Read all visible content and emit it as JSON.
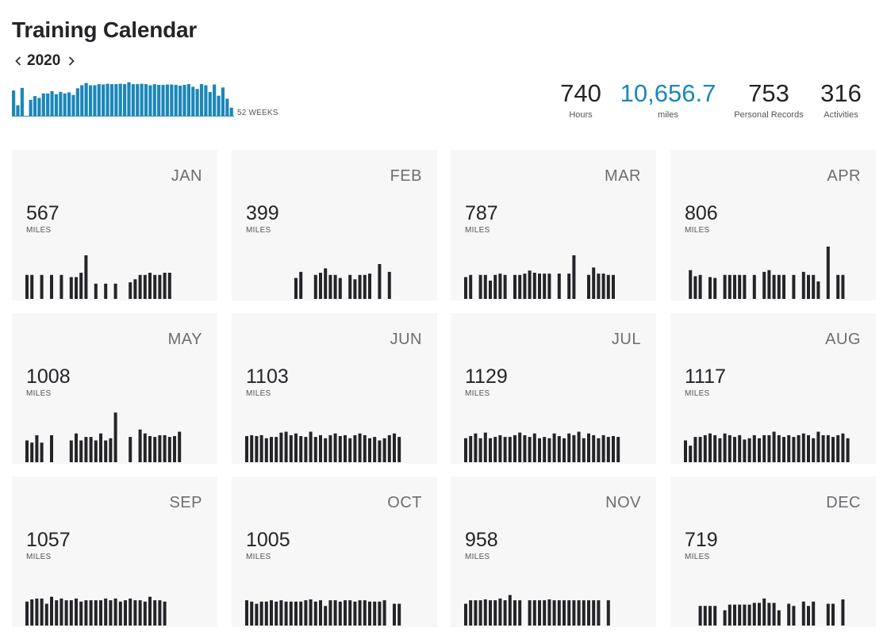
{
  "header": {
    "title": "Training Calendar",
    "year": "2020",
    "prev_icon": "chevron-left-icon",
    "next_icon": "chevron-right-icon",
    "weeks_caption": "52 WEEKS"
  },
  "weekly_chart": {
    "color": "#1b87b9",
    "values": [
      0.7,
      0.3,
      0.77,
      0.0,
      0.45,
      0.55,
      0.5,
      0.62,
      0.62,
      0.68,
      0.6,
      0.66,
      0.62,
      0.65,
      0.58,
      0.76,
      0.84,
      0.9,
      0.84,
      0.84,
      0.87,
      0.86,
      0.88,
      0.87,
      0.87,
      0.88,
      0.87,
      0.92,
      0.87,
      0.87,
      0.88,
      0.87,
      0.84,
      0.87,
      0.85,
      0.85,
      0.86,
      0.86,
      0.85,
      0.83,
      0.85,
      0.87,
      0.8,
      0.74,
      0.87,
      0.84,
      0.66,
      0.86,
      0.56,
      0.78,
      0.48,
      0.24
    ]
  },
  "stats": [
    {
      "value": "740",
      "label": "Hours",
      "accent": false
    },
    {
      "value": "10,656.7",
      "label": "miles",
      "accent": true
    },
    {
      "value": "753",
      "label": "Personal Records",
      "accent": false
    },
    {
      "value": "316",
      "label": "Activities",
      "accent": false
    }
  ],
  "months": [
    {
      "name": "JAN",
      "miles": "567",
      "unit": "MILES",
      "bars": [
        0.55,
        0.55,
        0,
        0.55,
        0,
        0.55,
        0,
        0.55,
        0,
        0.5,
        0.5,
        0.6,
        1.0,
        0,
        0.35,
        0,
        0.35,
        0,
        0.35,
        0,
        0,
        0.38,
        0.45,
        0.55,
        0.55,
        0.6,
        0.55,
        0.55,
        0.6,
        0.6,
        0
      ]
    },
    {
      "name": "FEB",
      "miles": "399",
      "unit": "MILES",
      "bars": [
        0,
        0,
        0,
        0,
        0,
        0,
        0,
        0,
        0,
        0,
        0.48,
        0.62,
        0,
        0,
        0.55,
        0.6,
        0.7,
        0.55,
        0.55,
        0.48,
        0,
        0.55,
        0.45,
        0.55,
        0.55,
        0.58,
        0,
        0.8,
        0,
        0.62
      ]
    },
    {
      "name": "MAR",
      "miles": "787",
      "unit": "MILES",
      "bars": [
        0.5,
        0.55,
        0,
        0.55,
        0.55,
        0.42,
        0.55,
        0.58,
        0.55,
        0,
        0.55,
        0.55,
        0.58,
        0.65,
        0.6,
        0.58,
        0.58,
        0.58,
        0,
        0.58,
        0,
        0.58,
        1.0,
        0,
        0,
        0.55,
        0.72,
        0.58,
        0.58,
        0.55,
        0.55
      ]
    },
    {
      "name": "APR",
      "miles": "806",
      "unit": "MILES",
      "bars": [
        0,
        0.66,
        0.52,
        0.55,
        0,
        0.5,
        0.48,
        0,
        0.55,
        0.55,
        0.55,
        0.55,
        0.55,
        0,
        0.55,
        0,
        0.62,
        0.66,
        0.55,
        0.55,
        0.55,
        0,
        0.55,
        0,
        0.62,
        0.55,
        0.55,
        0.4,
        0,
        1.2,
        0,
        0.55,
        0.55
      ]
    },
    {
      "name": "MAY",
      "miles": "1008",
      "unit": "MILES",
      "bars": [
        0.5,
        0.45,
        0.62,
        0.45,
        0,
        0.62,
        0,
        0,
        0,
        0.5,
        0.66,
        0.5,
        0.58,
        0.58,
        0.5,
        0.66,
        0.5,
        0.55,
        1.14,
        0,
        0,
        0.58,
        0,
        0.75,
        0.66,
        0.6,
        0.58,
        0.62,
        0.62,
        0.58,
        0.6,
        0.7
      ]
    },
    {
      "name": "JUN",
      "miles": "1103",
      "unit": "MILES",
      "bars": [
        0.6,
        0.62,
        0.6,
        0.62,
        0.55,
        0.58,
        0.58,
        0.68,
        0.7,
        0.62,
        0.66,
        0.6,
        0.58,
        0.7,
        0.58,
        0.62,
        0.55,
        0.62,
        0.66,
        0.6,
        0.62,
        0.55,
        0.62,
        0.66,
        0.62,
        0.55,
        0.58,
        0.5,
        0.55,
        0.62,
        0.66,
        0.58
      ]
    },
    {
      "name": "JUL",
      "miles": "1129",
      "unit": "MILES",
      "bars": [
        0.55,
        0.6,
        0.66,
        0.55,
        0.68,
        0.55,
        0.58,
        0.62,
        0.58,
        0.58,
        0.62,
        0.68,
        0.62,
        0.58,
        0.66,
        0.55,
        0.58,
        0.55,
        0.66,
        0.6,
        0.55,
        0.66,
        0.62,
        0.7,
        0.55,
        0.66,
        0.62,
        0.55,
        0.62,
        0.58,
        0.6,
        0.58
      ]
    },
    {
      "name": "AUG",
      "miles": "1117",
      "unit": "MILES",
      "bars": [
        0.5,
        0.38,
        0.58,
        0.58,
        0.62,
        0.66,
        0.62,
        0.55,
        0.66,
        0.62,
        0.58,
        0.62,
        0.52,
        0.55,
        0.62,
        0.55,
        0.62,
        0.62,
        0.7,
        0.62,
        0.58,
        0.62,
        0.58,
        0.62,
        0.66,
        0.62,
        0.55,
        0.7,
        0.62,
        0.62,
        0.58,
        0.62,
        0.66,
        0.55
      ]
    },
    {
      "name": "SEP",
      "miles": "1057",
      "unit": "MILES",
      "bars": [
        0.55,
        0.6,
        0.62,
        0.62,
        0.5,
        0.66,
        0.58,
        0.62,
        0.58,
        0.58,
        0.62,
        0.55,
        0.58,
        0.58,
        0.58,
        0.58,
        0.62,
        0.58,
        0.62,
        0.55,
        0.58,
        0.62,
        0.58,
        0.58,
        0.55,
        0.66,
        0.58,
        0.58,
        0.55
      ]
    },
    {
      "name": "OCT",
      "miles": "1005",
      "unit": "MILES",
      "bars": [
        0.58,
        0.55,
        0.5,
        0.55,
        0.55,
        0.58,
        0.55,
        0.58,
        0.55,
        0.55,
        0.55,
        0.55,
        0.58,
        0.6,
        0.55,
        0.58,
        0.45,
        0.58,
        0.58,
        0.55,
        0.58,
        0.58,
        0.55,
        0.58,
        0.58,
        0.55,
        0.55,
        0.55,
        0.58,
        0,
        0.5,
        0.5
      ]
    },
    {
      "name": "NOV",
      "miles": "958",
      "unit": "MILES",
      "bars": [
        0.5,
        0.58,
        0.58,
        0.58,
        0.6,
        0.58,
        0.58,
        0.62,
        0.58,
        0.7,
        0.58,
        0.58,
        0,
        0.58,
        0.58,
        0.58,
        0.58,
        0.6,
        0.58,
        0.58,
        0.58,
        0.58,
        0.58,
        0.58,
        0.58,
        0.58,
        0.58,
        0.58,
        0,
        0.58
      ]
    },
    {
      "name": "DEC",
      "miles": "719",
      "unit": "MILES",
      "bars": [
        0,
        0,
        0,
        0.45,
        0.45,
        0.45,
        0.45,
        0,
        0.35,
        0.48,
        0.48,
        0.48,
        0.48,
        0.48,
        0.52,
        0.52,
        0.62,
        0.52,
        0.52,
        0.35,
        0,
        0.5,
        0.45,
        0,
        0.55,
        0.45,
        0.55,
        0,
        0,
        0.5,
        0.5,
        0,
        0.6
      ]
    }
  ]
}
